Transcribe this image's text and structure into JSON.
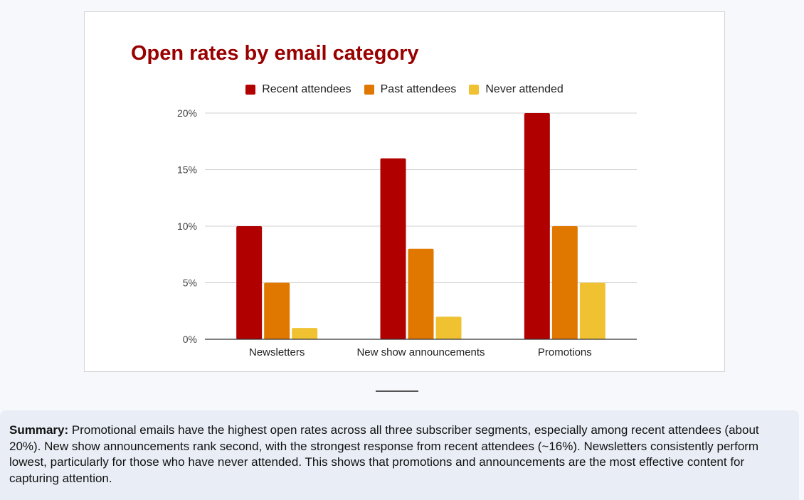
{
  "chart_data": {
    "type": "bar",
    "title": "Open rates by email category",
    "categories": [
      "Newsletters",
      "New show announcements",
      "Promotions"
    ],
    "series": [
      {
        "name": "Recent attendees",
        "color": "#b00000",
        "values": [
          10,
          16,
          20
        ]
      },
      {
        "name": "Past attendees",
        "color": "#e07800",
        "values": [
          5,
          8,
          10
        ]
      },
      {
        "name": "Never attended",
        "color": "#f0c232",
        "values": [
          1,
          2,
          5
        ]
      }
    ],
    "ylim": [
      0,
      20
    ],
    "yticks": [
      "0%",
      "5%",
      "10%",
      "15%",
      "20%"
    ],
    "xlabel": "",
    "ylabel": "",
    "grid": true,
    "legend_position": "top"
  },
  "summary": {
    "label": "Summary:",
    "text": " Promotional emails have the highest open rates across all three subscriber segments, especially among recent attendees (about 20%). New show announcements rank second, with the strongest response from recent attendees (~16%). Newsletters consistently perform lowest, particularly for those who have never attended. This shows that promotions and announcements are the most effective content for capturing attention."
  }
}
